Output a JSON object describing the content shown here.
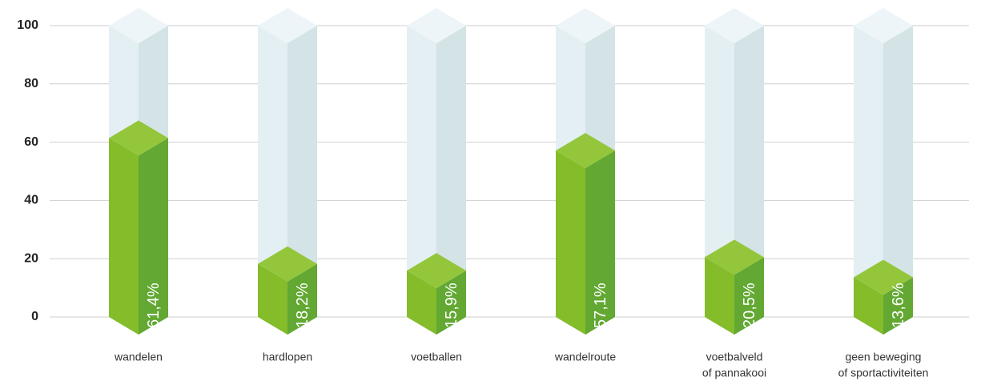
{
  "chart_data": {
    "type": "bar3d",
    "categories": [
      [
        "wandelen"
      ],
      [
        "hardlopen"
      ],
      [
        "voetballen"
      ],
      [
        "wandelroute"
      ],
      [
        "voetbalveld",
        "of pannakooi"
      ],
      [
        "geen beweging",
        "of sportactiviteiten"
      ]
    ],
    "values": [
      61.4,
      18.2,
      15.9,
      57.1,
      20.5,
      13.6
    ],
    "value_labels": [
      "61,4%",
      "18,2%",
      "15,9%",
      "57,1%",
      "20,5%",
      "13,6%"
    ],
    "colors": {
      "front": "#84bc2a",
      "side": "#62a832",
      "top": "#94c63c"
    },
    "ylim": [
      0,
      100
    ],
    "yticks": [
      0,
      20,
      40,
      60,
      80,
      100
    ],
    "grid": true
  }
}
